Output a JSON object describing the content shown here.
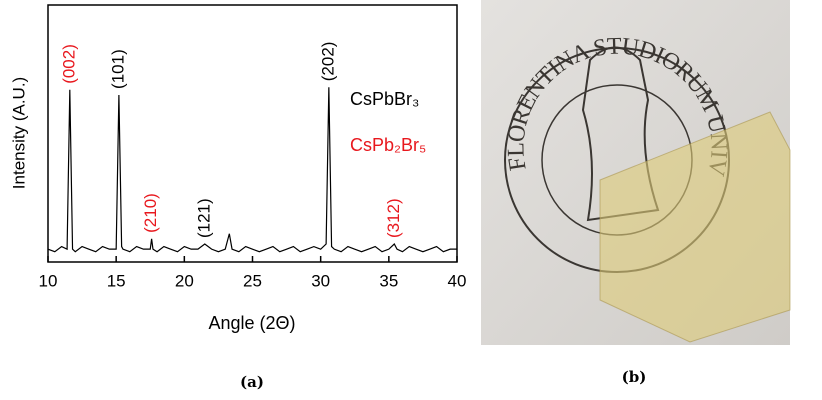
{
  "chart_data": {
    "type": "line",
    "y_label": "Intensity (A.U.)",
    "x_label": "Angle (2Θ)",
    "panel_label": "(a)",
    "xlim": [
      10,
      40
    ],
    "xticks": [
      10,
      15,
      20,
      25,
      30,
      35,
      40
    ],
    "ylim": [
      0,
      100
    ],
    "series": [
      {
        "color": "#000000",
        "x": [
          10,
          10.5,
          11,
          11.4,
          11.6,
          11.8,
          12,
          12.5,
          13,
          13.5,
          14,
          14.5,
          15,
          15.2,
          15.4,
          15.5,
          16,
          16.5,
          17,
          17.5,
          17.6,
          17.7,
          18,
          18.5,
          19,
          19.5,
          20,
          20.5,
          21,
          21.5,
          22,
          22.5,
          23,
          23.3,
          23.5,
          24,
          24.5,
          25,
          25.5,
          26,
          26.5,
          27,
          27.5,
          28,
          28.5,
          29,
          29.5,
          30,
          30.4,
          30.6,
          30.8,
          31,
          31.5,
          32,
          32.5,
          33,
          33.5,
          34,
          34.5,
          35,
          35.4,
          35.6,
          36,
          36.5,
          37,
          37.5,
          38,
          38.5,
          39,
          39.5,
          40
        ],
        "values": [
          5,
          4,
          6,
          5,
          67,
          5,
          4,
          6,
          5,
          4,
          6,
          5,
          5,
          65,
          6,
          5,
          4,
          6,
          5,
          5,
          9,
          5,
          4,
          6,
          5,
          4,
          6,
          5,
          5,
          7,
          5,
          4,
          5,
          11,
          5,
          4,
          6,
          5,
          4,
          5,
          6,
          4,
          5,
          6,
          4,
          5,
          6,
          5,
          7,
          68,
          6,
          5,
          4,
          6,
          5,
          4,
          5,
          6,
          4,
          5,
          7,
          5,
          4,
          6,
          5,
          4,
          5,
          6,
          4,
          5,
          5
        ]
      }
    ],
    "annotations": [
      {
        "text": "(002)",
        "x": 11.6,
        "color": "#e8171d"
      },
      {
        "text": "(101)",
        "x": 15.2,
        "color": "#000000"
      },
      {
        "text": "(210)",
        "x": 17.6,
        "color": "#e8171d"
      },
      {
        "text": "(121)",
        "x": 21.5,
        "color": "#000000"
      },
      {
        "text": "(202)",
        "x": 30.6,
        "color": "#000000"
      },
      {
        "text": "(312)",
        "x": 35.4,
        "color": "#e8171d"
      }
    ],
    "legend": [
      {
        "name": "CsPbBr₃",
        "color": "#000000"
      },
      {
        "name": "CsPb₂Br₅",
        "color": "#e8171d"
      }
    ]
  },
  "photo": {
    "panel_label": "(b)",
    "seal_text": "FLORENTINA STUDIORUM UNIVERSITAS"
  }
}
